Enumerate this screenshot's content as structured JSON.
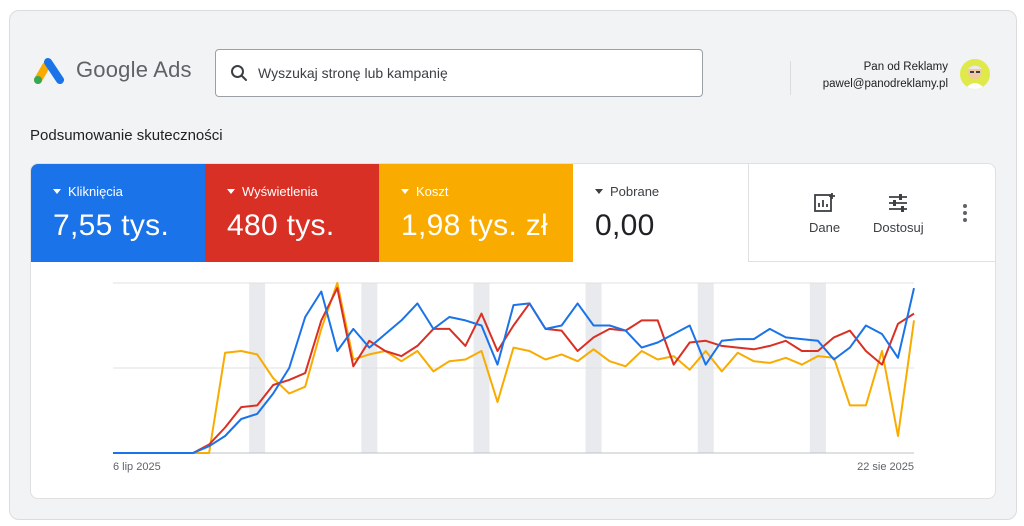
{
  "app": {
    "name": "Google Ads",
    "logo_icon": "google-ads-logo",
    "colors": {
      "blue": "#1a73e8",
      "red": "#d93025",
      "yellow": "#f9ab00",
      "green": "#34a853"
    }
  },
  "search": {
    "placeholder": "Wyszukaj stronę lub kampanię",
    "value": ""
  },
  "user": {
    "name": "Pan od Reklamy",
    "email": "pawel@panodreklamy.pl"
  },
  "section_title": "Podsumowanie skuteczności",
  "metrics": [
    {
      "label": "Kliknięcia",
      "value": "7,55 tys.",
      "color": "#1a73e8"
    },
    {
      "label": "Wyświetlenia",
      "value": "480 tys.",
      "color": "#d93025"
    },
    {
      "label": "Koszt",
      "value": "1,98 tys. zł",
      "color": "#f9ab00"
    },
    {
      "label": "Pobrane",
      "value": "0,00",
      "color": "#ffffff"
    }
  ],
  "toolbar": {
    "dane_label": "Dane",
    "dostosuj_label": "Dostosuj"
  },
  "chart_data": {
    "type": "line",
    "x_start_label": "6 lip 2025",
    "x_end_label": "22 sie 2025",
    "ylim": [
      0,
      100
    ],
    "grid": true,
    "series": [
      {
        "color": "#1a73e8",
        "values": [
          0,
          0,
          0,
          0,
          0,
          0,
          4,
          10,
          20,
          23,
          35,
          50,
          80,
          95,
          60,
          73,
          62,
          70,
          78,
          88,
          73,
          80,
          78,
          75,
          52,
          87,
          88,
          73,
          75,
          88,
          75,
          75,
          72,
          62,
          65,
          70,
          75,
          52,
          66,
          67,
          67,
          73,
          68,
          67,
          66,
          55,
          62,
          75,
          70,
          56,
          97
        ]
      },
      {
        "color": "#d93025",
        "values": [
          0,
          0,
          0,
          0,
          0,
          0,
          5,
          15,
          27,
          28,
          40,
          43,
          47,
          78,
          97,
          51,
          66,
          60,
          57,
          63,
          73,
          73,
          63,
          82,
          60,
          75,
          88,
          73,
          72,
          60,
          68,
          73,
          72,
          78,
          78,
          52,
          65,
          66,
          63,
          62,
          61,
          63,
          66,
          60,
          60,
          68,
          72,
          60,
          52,
          76,
          82
        ]
      },
      {
        "color": "#f9ab00",
        "values": [
          0,
          0,
          0,
          0,
          0,
          0,
          0,
          59,
          60,
          58,
          44,
          35,
          39,
          73,
          100,
          55,
          58,
          60,
          54,
          60,
          48,
          54,
          55,
          60,
          30,
          62,
          60,
          55,
          58,
          54,
          61,
          54,
          51,
          60,
          55,
          57,
          49,
          60,
          48,
          59,
          54,
          53,
          56,
          52,
          57,
          56,
          28,
          28,
          60,
          10,
          78
        ]
      }
    ],
    "weekend_band_indices": [
      9,
      16,
      23,
      30,
      37,
      44
    ]
  }
}
